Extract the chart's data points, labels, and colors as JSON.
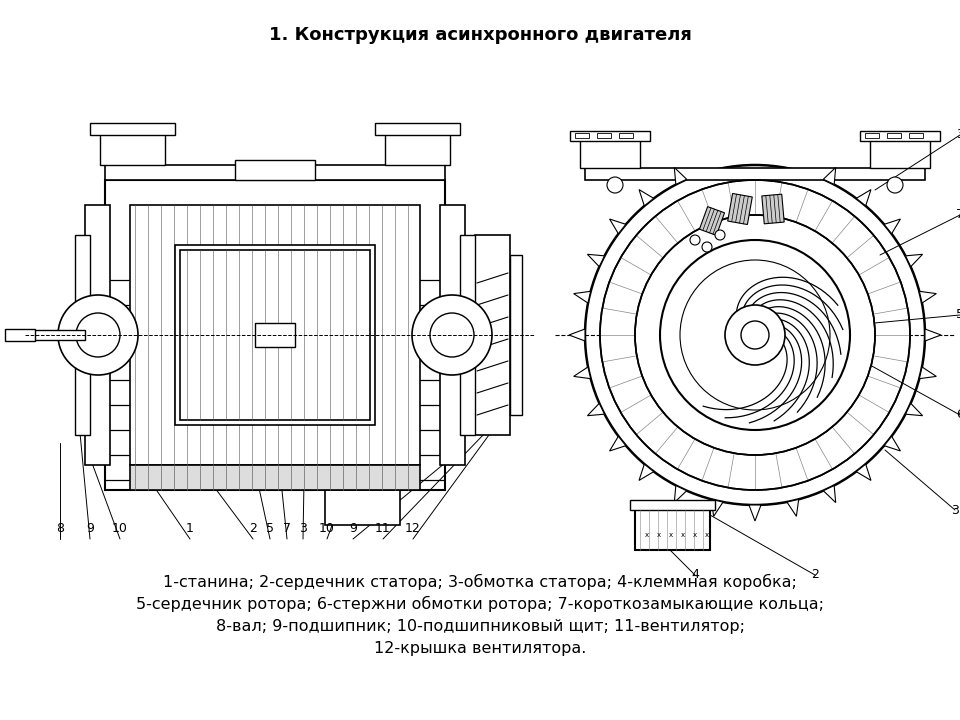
{
  "title": "1. Конструкция асинхронного двигателя",
  "title_fontsize": 13,
  "title_fontweight": "bold",
  "bg_color": "#ffffff",
  "line_color": "#000000",
  "legend_lines": [
    "1-станина; 2-сердечник статора; 3-обмотка статора; 4-клеммная коробка;",
    "5-сердечник ротора; 6-стержни обмотки ротора; 7-короткозамыкающие кольца;",
    "8-вал; 9-подшипник; 10-подшипниковый щит; 11-вентилятор;",
    "12-крышка вентилятора."
  ],
  "legend_fontsize": 11.5,
  "figsize": [
    9.6,
    7.2
  ],
  "dpi": 100
}
